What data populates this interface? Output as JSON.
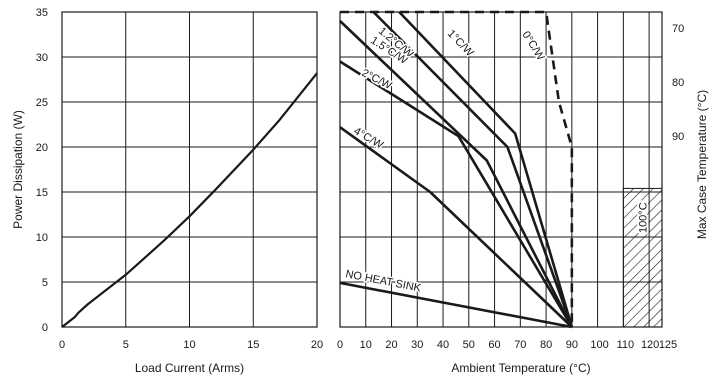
{
  "colors": {
    "ink": "#1a1a1a",
    "grid": "#1a1a1a",
    "background": "#ffffff"
  },
  "chart_data": [
    {
      "type": "line",
      "xlabel": "Load Current (Arms)",
      "ylabel": "Power Dissipation (W)",
      "xlim": [
        0,
        20
      ],
      "ylim": [
        0,
        35
      ],
      "x_ticks": [
        "0",
        "5",
        "10",
        "15",
        "20"
      ],
      "y_ticks": [
        "0",
        "5",
        "10",
        "15",
        "20",
        "25",
        "30",
        "35"
      ],
      "grid": true,
      "series": [
        {
          "x": [
            0,
            1,
            1.3,
            2,
            5,
            8,
            10,
            12,
            15,
            17,
            20
          ],
          "y": [
            0,
            1.1,
            1.6,
            2.5,
            5.8,
            9.6,
            12.3,
            15.2,
            19.7,
            22.9,
            28.2
          ]
        }
      ]
    },
    {
      "type": "line",
      "xlabel": "Ambient Temperature (°C)",
      "y2label": "Max Case Temperature (°C)",
      "xlim": [
        0,
        125
      ],
      "ylim": [
        0,
        35
      ],
      "x_ticks": [
        "0",
        "10",
        "20",
        "30",
        "40",
        "50",
        "60",
        "70",
        "80",
        "90",
        "100",
        "110",
        "120",
        "125"
      ],
      "y2_ticks": [
        "70",
        "80",
        "90"
      ],
      "grid": true,
      "hatched_region_label": "100°C",
      "series": [
        {
          "name": "0°C/W",
          "style": "dashed",
          "x": [
            0,
            80,
            85,
            90,
            90
          ],
          "y": [
            35,
            35,
            25,
            20,
            0
          ]
        },
        {
          "name": "1°C/W",
          "x": [
            23,
            68,
            90
          ],
          "y": [
            35,
            21.5,
            0
          ]
        },
        {
          "name": "1.2°C/W",
          "x": [
            13,
            65,
            90
          ],
          "y": [
            35,
            20,
            0
          ]
        },
        {
          "name": "1.5°C/W",
          "x": [
            0,
            57,
            90
          ],
          "y": [
            34,
            18.5,
            0
          ]
        },
        {
          "name": "2°C/W",
          "x": [
            0,
            46,
            90
          ],
          "y": [
            29.5,
            21.2,
            0
          ]
        },
        {
          "name": "4°C/W",
          "x": [
            0,
            35,
            90
          ],
          "y": [
            22.2,
            15,
            0
          ]
        },
        {
          "name": "NO HEAT SINK",
          "x": [
            0,
            90
          ],
          "y": [
            4.9,
            0
          ]
        }
      ]
    }
  ]
}
